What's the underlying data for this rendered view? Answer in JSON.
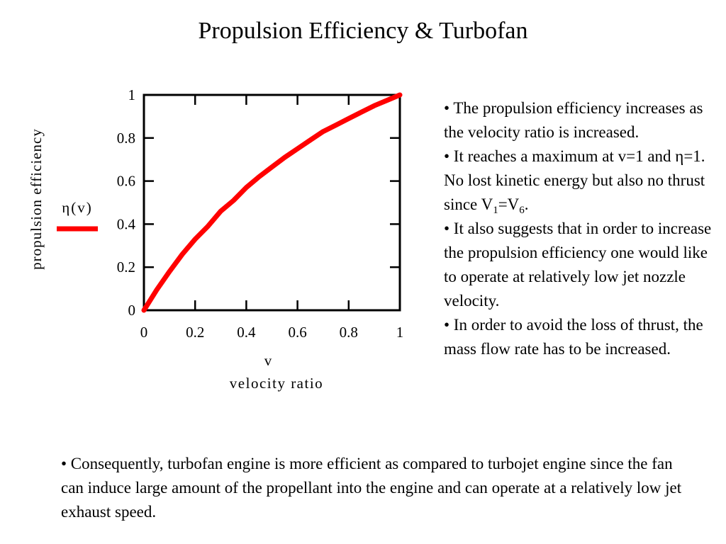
{
  "slide": {
    "title": "Propulsion Efficiency & Turbofan"
  },
  "chart_data": {
    "type": "line",
    "ylabel": "propulsion efficiency",
    "xlabel_top": "v",
    "xlabel_bottom": "velocity ratio",
    "xlim": [
      0,
      1
    ],
    "ylim": [
      0,
      1
    ],
    "x_ticks": [
      "0",
      "0.2",
      "0.4",
      "0.6",
      "0.8",
      "1"
    ],
    "y_ticks": [
      "0",
      "0.2",
      "0.4",
      "0.6",
      "0.8",
      "1"
    ],
    "grid": false,
    "legend": {
      "position": "left",
      "entries": [
        {
          "label": "η(v)",
          "color": "#ff0000"
        }
      ]
    },
    "series": [
      {
        "name": "η(v)",
        "color": "#ff0000",
        "x": [
          0,
          0.05,
          0.1,
          0.15,
          0.2,
          0.25,
          0.3,
          0.35,
          0.4,
          0.45,
          0.5,
          0.55,
          0.6,
          0.65,
          0.7,
          0.75,
          0.8,
          0.85,
          0.9,
          0.95,
          1.0
        ],
        "y": [
          0,
          0.095,
          0.18,
          0.26,
          0.33,
          0.39,
          0.46,
          0.51,
          0.57,
          0.62,
          0.665,
          0.71,
          0.75,
          0.79,
          0.83,
          0.86,
          0.89,
          0.92,
          0.95,
          0.975,
          1.0
        ]
      }
    ]
  },
  "right_bullets": [
    {
      "text": "• The propulsion efficiency increases as the velocity ratio is increased."
    },
    {
      "text": "• It reaches a maximum at v=1 and η=1.  No lost kinetic energy but also no thrust since V",
      "sub1": "1",
      "mid": "=V",
      "sub2": "6",
      "end": "."
    },
    {
      "text": "• It also suggests that in order to increase the propulsion efficiency one would like to operate at relatively low jet nozzle velocity."
    },
    {
      "text": "• In order to avoid the loss of thrust, the mass flow rate has to be increased."
    }
  ],
  "bottom_bullet": {
    "text": "• Consequently, turbofan engine is more efficient as compared to turbojet engine since the fan can induce large amount of the propellant into the engine and can operate at a relatively low jet exhaust speed."
  }
}
